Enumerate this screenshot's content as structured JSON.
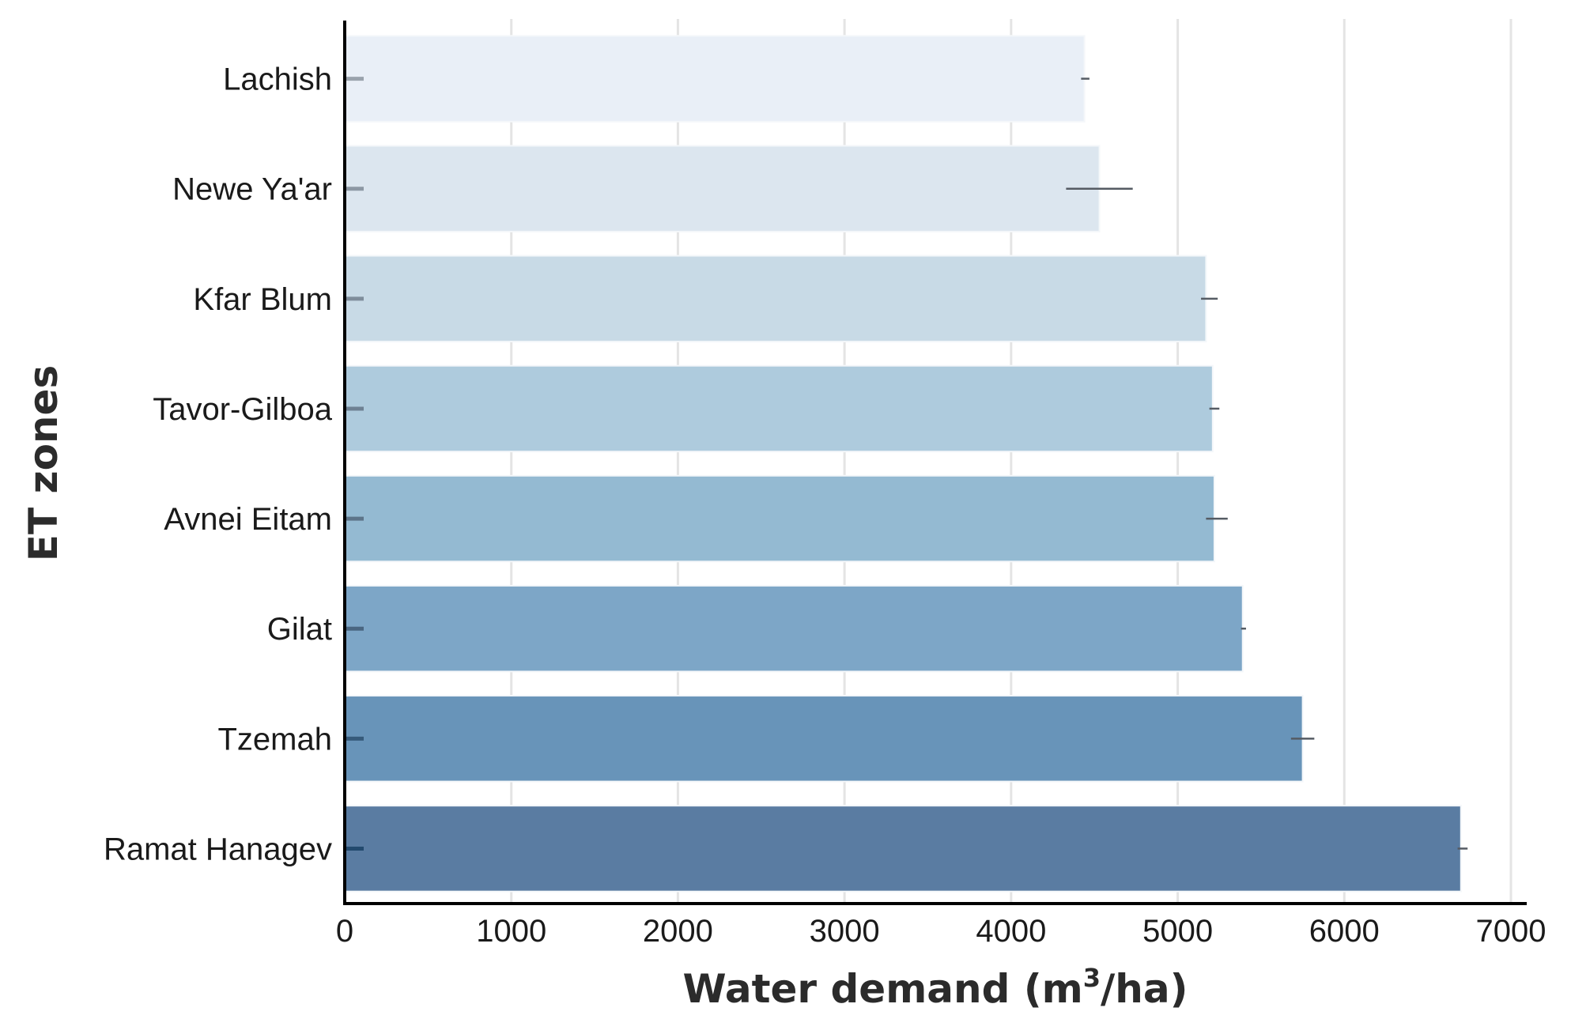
{
  "chart_data": {
    "type": "bar",
    "orientation": "horizontal",
    "categories": [
      "Lachish",
      "Newe Ya'ar",
      "Kfar Blum",
      "Tavor-Gilboa",
      "Avnei Eitam",
      "Gilat",
      "Tzemah",
      "Ramat Hanagev"
    ],
    "values": [
      4440,
      4530,
      5170,
      5210,
      5220,
      5390,
      5750,
      6700
    ],
    "error_low": [
      4420,
      4330,
      5140,
      5190,
      5170,
      5380,
      5680,
      6680
    ],
    "error_high": [
      4470,
      4730,
      5240,
      5250,
      5300,
      5410,
      5820,
      6740
    ],
    "colors": [
      "#e9eff7",
      "#dce6ef",
      "#c8dae6",
      "#aecbdd",
      "#94bad2",
      "#7da6c7",
      "#6894b9",
      "#5a7ca2"
    ],
    "xlabel_main": "Water demand (m",
    "xlabel_sup": "3",
    "xlabel_end": "/ha)",
    "ylabel": "ET zones",
    "xlim": [
      0,
      7000
    ],
    "xticks": [
      "0",
      "1000",
      "2000",
      "3000",
      "4000",
      "5000",
      "6000",
      "7000"
    ],
    "grid": "vertical"
  }
}
